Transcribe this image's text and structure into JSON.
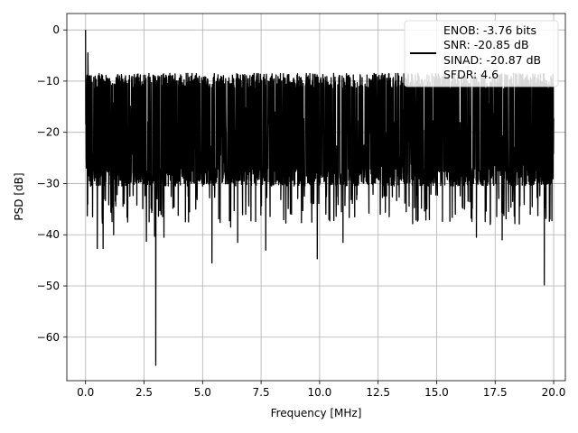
{
  "chart_data": {
    "type": "line",
    "title": "",
    "xlabel": "Frequency [MHz]",
    "ylabel": "PSD [dB]",
    "xlim": [
      -0.8,
      20.5
    ],
    "ylim": [
      -68.5,
      3.2
    ],
    "xticks": [
      0.0,
      2.5,
      5.0,
      7.5,
      10.0,
      12.5,
      15.0,
      17.5,
      20.0
    ],
    "xtick_labels": [
      "0.0",
      "2.5",
      "5.0",
      "7.5",
      "10.0",
      "12.5",
      "15.0",
      "17.5",
      "20.0"
    ],
    "yticks": [
      0,
      -10,
      -20,
      -30,
      -40,
      -50,
      -60
    ],
    "ytick_labels": [
      "0",
      "−10",
      "−20",
      "−30",
      "−40",
      "−50",
      "−60"
    ],
    "grid": true,
    "line_color": "#000000",
    "legend": {
      "placement": "upper-right",
      "entries": [
        "ENOB: -3.76 bits",
        "SNR: -20.85 dB",
        "SINAD: -20.87 dB",
        "SFDR: 4.6"
      ]
    },
    "series": [
      {
        "x_range": [
          0.0,
          20.0
        ],
        "baseline_db": -20.8,
        "typical_range_db": [
          -29,
          -10
        ],
        "peaks": [
          {
            "x": 0.0,
            "y": 0.0
          },
          {
            "x": 0.1,
            "y": -4.5
          },
          {
            "x": 1.2,
            "y": -8.0
          },
          {
            "x": 3.6,
            "y": -8.5
          },
          {
            "x": 4.3,
            "y": -8.5
          },
          {
            "x": 7.2,
            "y": -8.5
          },
          {
            "x": 8.8,
            "y": -8.5
          },
          {
            "x": 10.6,
            "y": -8.5
          },
          {
            "x": 12.8,
            "y": -8.7
          },
          {
            "x": 14.2,
            "y": -8.5
          },
          {
            "x": 17.0,
            "y": -8.7
          }
        ],
        "dips": [
          {
            "x": 0.3,
            "y": -36.5
          },
          {
            "x": 0.5,
            "y": -42.7
          },
          {
            "x": 0.75,
            "y": -42.7
          },
          {
            "x": 1.2,
            "y": -40.0
          },
          {
            "x": 1.8,
            "y": -37.5
          },
          {
            "x": 2.6,
            "y": -41.3
          },
          {
            "x": 2.95,
            "y": -40.3
          },
          {
            "x": 3.0,
            "y": -65.5
          },
          {
            "x": 3.35,
            "y": -40.5
          },
          {
            "x": 4.4,
            "y": -37.5
          },
          {
            "x": 5.4,
            "y": -45.5
          },
          {
            "x": 6.2,
            "y": -38.5
          },
          {
            "x": 6.5,
            "y": -41.5
          },
          {
            "x": 7.7,
            "y": -43.0
          },
          {
            "x": 8.8,
            "y": -36.0
          },
          {
            "x": 9.9,
            "y": -44.7
          },
          {
            "x": 10.4,
            "y": -37.0
          },
          {
            "x": 11.0,
            "y": -41.5
          },
          {
            "x": 11.5,
            "y": -36.5
          },
          {
            "x": 13.7,
            "y": -35.5
          },
          {
            "x": 15.8,
            "y": -36.0
          },
          {
            "x": 16.7,
            "y": -40.5
          },
          {
            "x": 17.3,
            "y": -37.5
          },
          {
            "x": 17.8,
            "y": -41.0
          },
          {
            "x": 19.0,
            "y": -36.0
          },
          {
            "x": 19.6,
            "y": -49.8
          }
        ]
      }
    ]
  }
}
